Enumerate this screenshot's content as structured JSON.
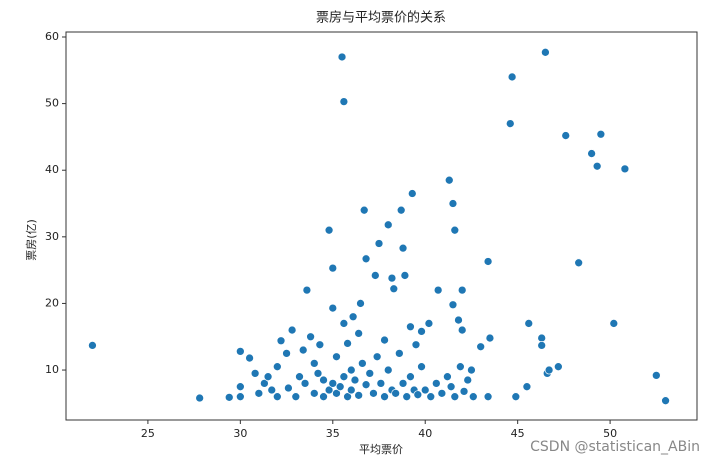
{
  "chart_data": {
    "type": "scatter",
    "title": "票房与平均票价的关系",
    "x_label": "平均票价",
    "y_label": "票房(亿)",
    "annotation": "CSDN @statistican_ABin",
    "color": "#1f77b4",
    "x": [
      22,
      27.8,
      29.4,
      30,
      30,
      30,
      30.5,
      30.8,
      31.3,
      31.5,
      31.7,
      32,
      32.2,
      32.5,
      32.6,
      32.8,
      33,
      33.2,
      33.4,
      33.6,
      33.8,
      34,
      34,
      34.3,
      34.5,
      34.8,
      35,
      35,
      35.2,
      35.5,
      35.6,
      35.6,
      35.8,
      36,
      36.1,
      36.4,
      36.5,
      36.7,
      36.8,
      37.3,
      37.5,
      37.8,
      38,
      38.2,
      38.3,
      38.7,
      38.8,
      38.9,
      39.3,
      39.2,
      39.5,
      39.8,
      40.2,
      40.7,
      41.3,
      41.5,
      41.6,
      41.5,
      41.8,
      42,
      42,
      42.5,
      43,
      43.4,
      43.5,
      43.4,
      44.6,
      44.7,
      44.9,
      45.5,
      45.6,
      46.3,
      46.3,
      46.5,
      46.6,
      46.7,
      47.2,
      47.6,
      48.3,
      49,
      49.3,
      49.5,
      50.2,
      50.8,
      52.5,
      53,
      34.5,
      34.8,
      35,
      35.2,
      35.4,
      35.6,
      35.8,
      36,
      36.2,
      36.4,
      36.6,
      36.8,
      37,
      37.2,
      37.4,
      37.6,
      37.8,
      38,
      38.2,
      38.4,
      38.6,
      38.8,
      39,
      39.2,
      39.4,
      39.6,
      39.8,
      40,
      40.3,
      40.6,
      40.9,
      41.2,
      41.4,
      41.6,
      41.9,
      42.1,
      42.3,
      42.6,
      33.5,
      34.2,
      31,
      32
    ],
    "y": [
      13.7,
      5.8,
      5.9,
      12.8,
      7.5,
      6,
      11.8,
      9.5,
      8,
      9,
      7,
      6,
      14.4,
      12.5,
      7.3,
      16,
      6,
      9,
      13,
      22,
      15,
      11,
      6.5,
      13.8,
      8.5,
      31,
      25.3,
      19.3,
      12,
      57,
      50.3,
      17,
      14,
      10,
      18,
      15.5,
      20,
      34,
      26.7,
      24.2,
      29,
      14.5,
      31.8,
      23.8,
      22.2,
      34,
      28.3,
      24.2,
      36.5,
      16.5,
      13.8,
      15.8,
      17,
      22,
      38.5,
      35,
      31,
      19.8,
      17.5,
      22,
      16,
      10,
      13.5,
      26.3,
      14.8,
      6,
      47,
      54,
      6,
      7.5,
      17,
      14.8,
      13.7,
      57.7,
      9.5,
      10,
      10.5,
      45.2,
      26.1,
      42.5,
      40.6,
      45.4,
      17,
      40.2,
      9.2,
      5.4,
      6,
      7,
      8,
      6.5,
      7.5,
      9,
      6,
      7,
      8.5,
      6.2,
      11,
      7.8,
      9.5,
      6.5,
      12,
      8,
      6,
      10,
      7,
      6.5,
      12.5,
      8,
      6,
      9,
      7,
      6.3,
      10.5,
      7,
      6,
      8,
      6.5,
      9,
      7.5,
      6,
      10.5,
      6.8,
      8.5,
      6,
      8,
      9.5,
      6.5,
      10.5
    ],
    "xlim": [
      20.57,
      54.7
    ],
    "ylim": [
      2.5,
      60.75
    ],
    "xticks": [
      25,
      30,
      35,
      40,
      45,
      50
    ],
    "yticks": [
      10,
      20,
      30,
      40,
      50,
      60
    ]
  }
}
